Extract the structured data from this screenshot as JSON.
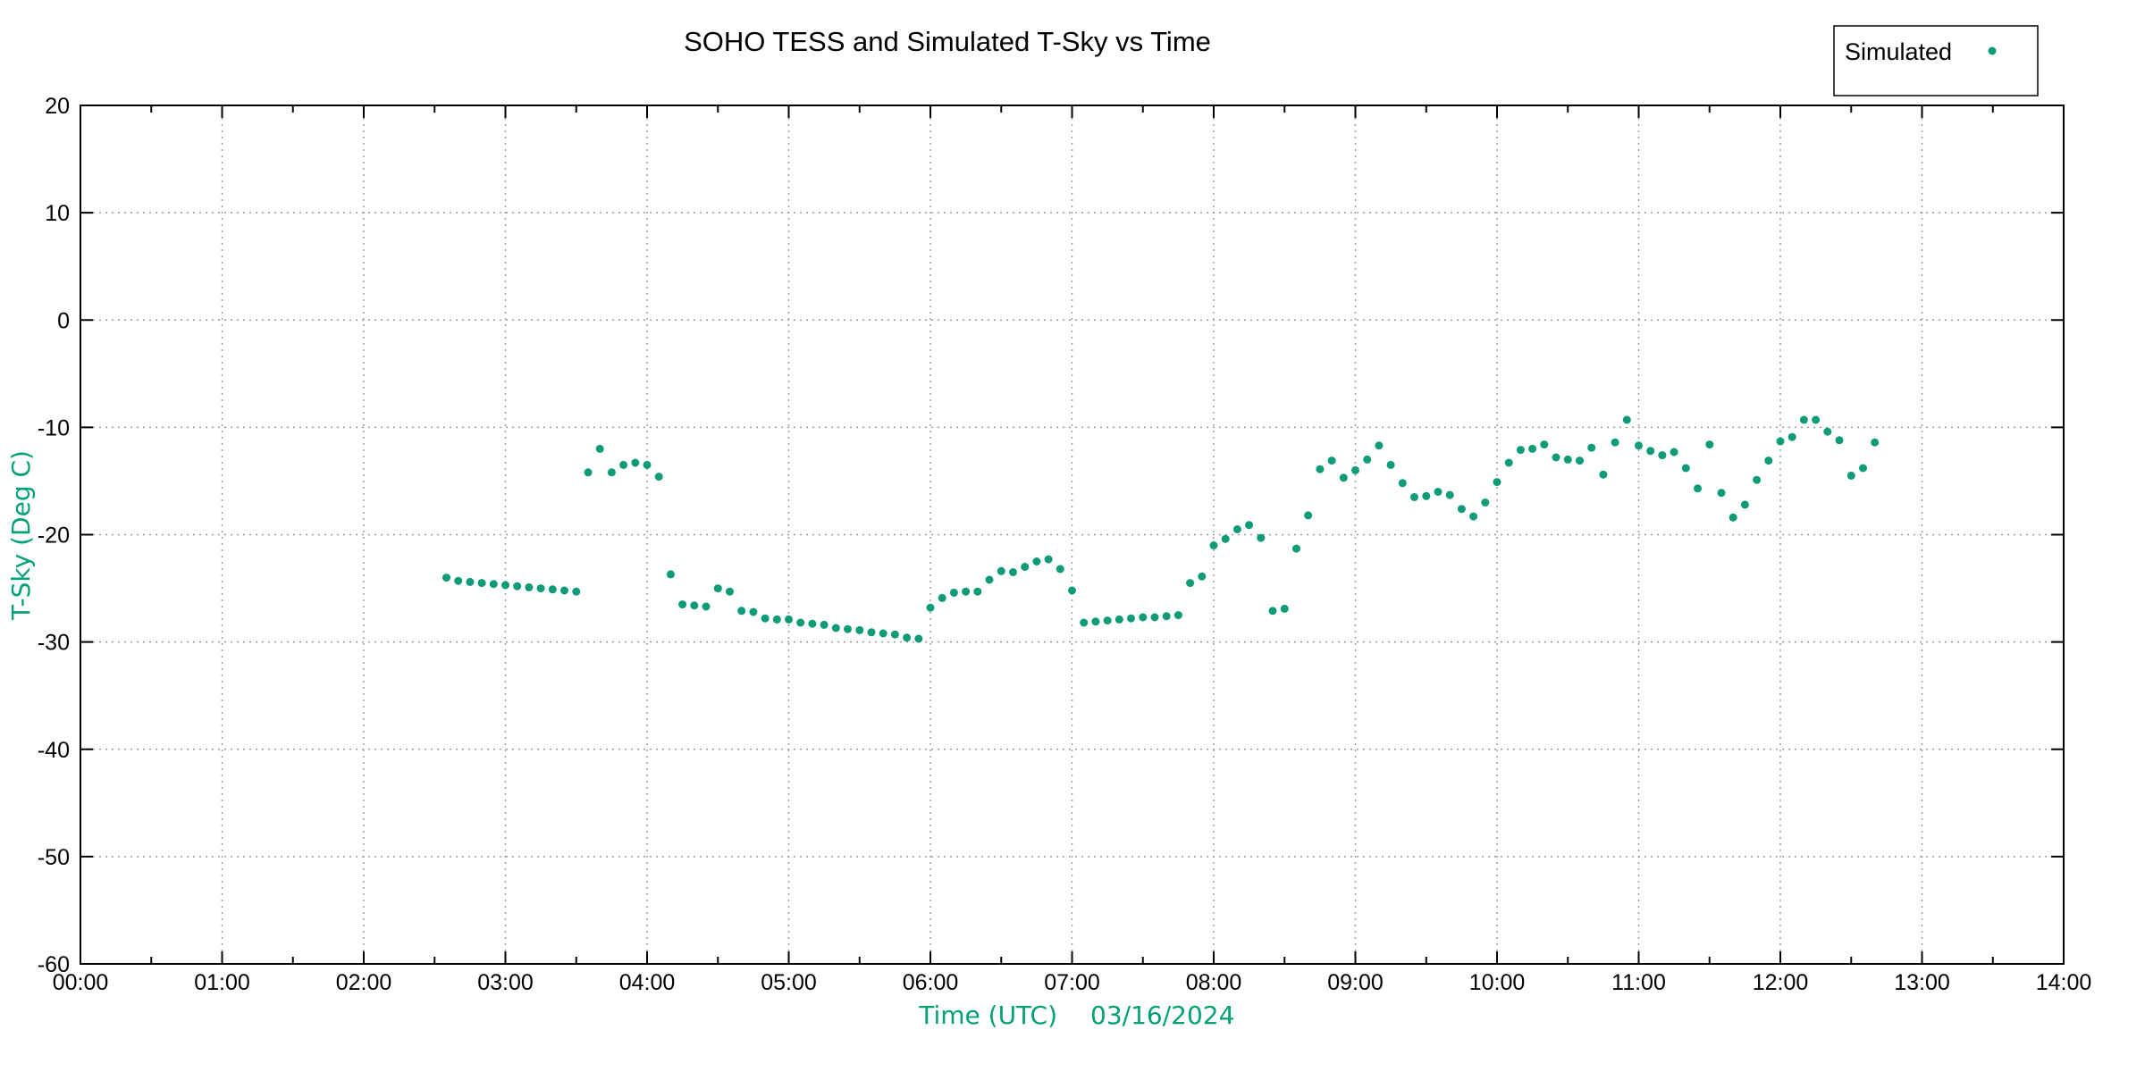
{
  "chart_data": {
    "type": "scatter",
    "title": "SOHO TESS and Simulated T-Sky vs Time",
    "xlabel": "Time (UTC)",
    "xlabel_date": "03/16/2024",
    "ylabel": "T-Sky (Deg C)",
    "grid": true,
    "legend": {
      "label": "Simulated",
      "position": "top-right"
    },
    "colors": {
      "marker": "#0d9b78",
      "axis_label_text": "#00a175",
      "grid": "#9b9b9b",
      "axis": "#000000",
      "background": "#ffffff",
      "title_text": "#000000"
    },
    "x_axis": {
      "unit": "hours",
      "min": 0,
      "max": 14,
      "tick_labels": [
        "00:00",
        "01:00",
        "02:00",
        "03:00",
        "04:00",
        "05:00",
        "06:00",
        "07:00",
        "08:00",
        "09:00",
        "10:00",
        "11:00",
        "12:00",
        "13:00",
        "14:00"
      ],
      "minor_tick_every_minutes": 30
    },
    "y_axis": {
      "min": -60,
      "max": 20,
      "tick_labels": [
        20,
        10,
        0,
        -10,
        -20,
        -30,
        -40,
        -50,
        -60
      ]
    },
    "series": [
      {
        "name": "Simulated",
        "marker": "dot",
        "points": [
          [
            "02:35",
            -24.0
          ],
          [
            "02:40",
            -24.3
          ],
          [
            "02:45",
            -24.4
          ],
          [
            "02:50",
            -24.5
          ],
          [
            "02:55",
            -24.6
          ],
          [
            "03:00",
            -24.7
          ],
          [
            "03:05",
            -24.8
          ],
          [
            "03:10",
            -24.9
          ],
          [
            "03:15",
            -25.0
          ],
          [
            "03:20",
            -25.1
          ],
          [
            "03:25",
            -25.2
          ],
          [
            "03:30",
            -25.3
          ],
          [
            "03:35",
            -14.2
          ],
          [
            "03:40",
            -12.0
          ],
          [
            "03:45",
            -14.2
          ],
          [
            "03:50",
            -13.5
          ],
          [
            "03:55",
            -13.3
          ],
          [
            "04:00",
            -13.5
          ],
          [
            "04:05",
            -14.6
          ],
          [
            "04:10",
            -23.7
          ],
          [
            "04:15",
            -26.5
          ],
          [
            "04:20",
            -26.6
          ],
          [
            "04:25",
            -26.7
          ],
          [
            "04:30",
            -25.0
          ],
          [
            "04:35",
            -25.3
          ],
          [
            "04:40",
            -27.1
          ],
          [
            "04:45",
            -27.2
          ],
          [
            "04:50",
            -27.8
          ],
          [
            "04:55",
            -27.9
          ],
          [
            "05:00",
            -27.9
          ],
          [
            "05:05",
            -28.2
          ],
          [
            "05:10",
            -28.3
          ],
          [
            "05:15",
            -28.4
          ],
          [
            "05:20",
            -28.7
          ],
          [
            "05:25",
            -28.8
          ],
          [
            "05:30",
            -28.9
          ],
          [
            "05:35",
            -29.1
          ],
          [
            "05:40",
            -29.2
          ],
          [
            "05:45",
            -29.3
          ],
          [
            "05:50",
            -29.6
          ],
          [
            "05:55",
            -29.7
          ],
          [
            "06:00",
            -26.8
          ],
          [
            "06:05",
            -25.9
          ],
          [
            "06:10",
            -25.4
          ],
          [
            "06:15",
            -25.3
          ],
          [
            "06:20",
            -25.3
          ],
          [
            "06:25",
            -24.2
          ],
          [
            "06:30",
            -23.4
          ],
          [
            "06:35",
            -23.5
          ],
          [
            "06:40",
            -23.0
          ],
          [
            "06:45",
            -22.5
          ],
          [
            "06:50",
            -22.3
          ],
          [
            "06:55",
            -23.2
          ],
          [
            "07:00",
            -25.2
          ],
          [
            "07:05",
            -28.2
          ],
          [
            "07:10",
            -28.1
          ],
          [
            "07:15",
            -28.0
          ],
          [
            "07:20",
            -27.9
          ],
          [
            "07:25",
            -27.8
          ],
          [
            "07:30",
            -27.7
          ],
          [
            "07:35",
            -27.7
          ],
          [
            "07:40",
            -27.6
          ],
          [
            "07:45",
            -27.5
          ],
          [
            "07:50",
            -24.5
          ],
          [
            "07:55",
            -23.9
          ],
          [
            "08:00",
            -21.0
          ],
          [
            "08:05",
            -20.4
          ],
          [
            "08:10",
            -19.5
          ],
          [
            "08:15",
            -19.1
          ],
          [
            "08:20",
            -20.3
          ],
          [
            "08:25",
            -27.1
          ],
          [
            "08:30",
            -26.9
          ],
          [
            "08:35",
            -21.3
          ],
          [
            "08:40",
            -18.2
          ],
          [
            "08:45",
            -13.9
          ],
          [
            "08:50",
            -13.1
          ],
          [
            "08:55",
            -14.7
          ],
          [
            "09:00",
            -14.0
          ],
          [
            "09:05",
            -13.0
          ],
          [
            "09:10",
            -11.7
          ],
          [
            "09:15",
            -13.5
          ],
          [
            "09:20",
            -15.2
          ],
          [
            "09:25",
            -16.5
          ],
          [
            "09:30",
            -16.4
          ],
          [
            "09:35",
            -16.0
          ],
          [
            "09:40",
            -16.3
          ],
          [
            "09:45",
            -17.6
          ],
          [
            "09:50",
            -18.3
          ],
          [
            "09:55",
            -17.0
          ],
          [
            "10:00",
            -15.1
          ],
          [
            "10:05",
            -13.3
          ],
          [
            "10:10",
            -12.1
          ],
          [
            "10:15",
            -12.0
          ],
          [
            "10:20",
            -11.6
          ],
          [
            "10:25",
            -12.8
          ],
          [
            "10:30",
            -13.0
          ],
          [
            "10:35",
            -13.1
          ],
          [
            "10:40",
            -11.9
          ],
          [
            "10:45",
            -14.4
          ],
          [
            "10:50",
            -11.4
          ],
          [
            "10:55",
            -9.3
          ],
          [
            "11:00",
            -11.7
          ],
          [
            "11:05",
            -12.2
          ],
          [
            "11:10",
            -12.6
          ],
          [
            "11:15",
            -12.3
          ],
          [
            "11:20",
            -13.8
          ],
          [
            "11:25",
            -15.7
          ],
          [
            "11:30",
            -11.6
          ],
          [
            "11:35",
            -16.1
          ],
          [
            "11:40",
            -18.4
          ],
          [
            "11:45",
            -17.2
          ],
          [
            "11:50",
            -14.9
          ],
          [
            "11:55",
            -13.1
          ],
          [
            "12:00",
            -11.3
          ],
          [
            "12:05",
            -10.9
          ],
          [
            "12:10",
            -9.3
          ],
          [
            "12:15",
            -9.3
          ],
          [
            "12:20",
            -10.4
          ],
          [
            "12:25",
            -11.2
          ],
          [
            "12:30",
            -14.5
          ],
          [
            "12:35",
            -13.8
          ],
          [
            "12:40",
            -11.4
          ]
        ]
      }
    ]
  }
}
